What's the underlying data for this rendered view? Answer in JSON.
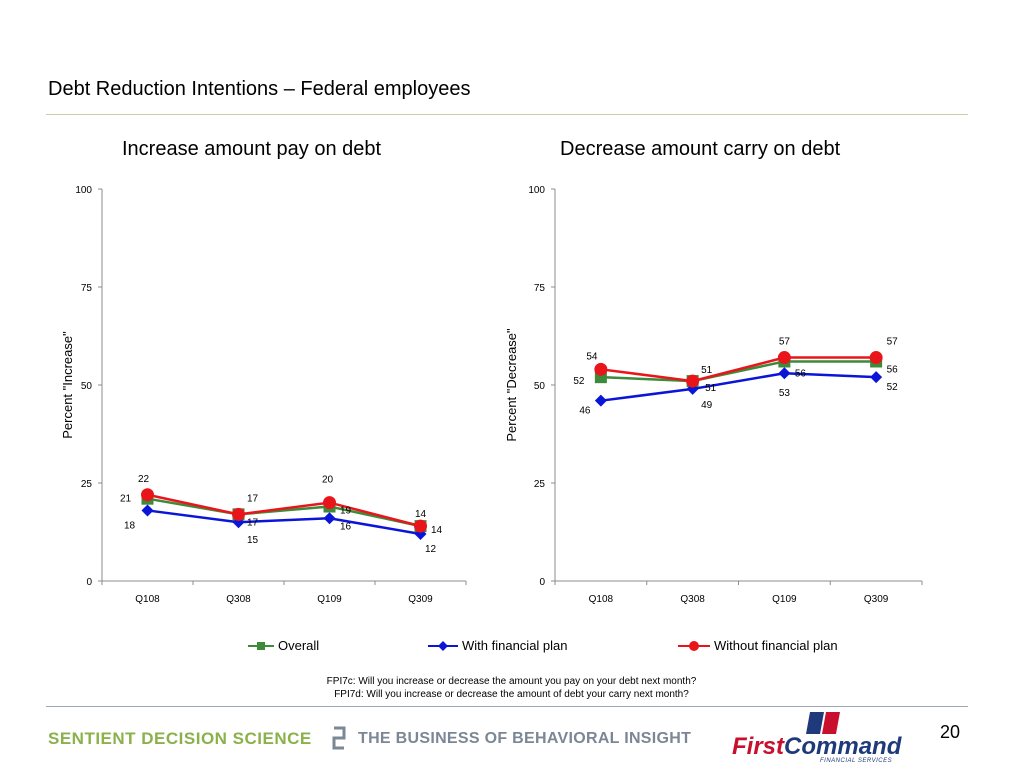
{
  "page": {
    "title": "Debt Reduction Intentions – Federal employees",
    "page_number": "20",
    "questions": [
      "FPI7c: Will you increase or decrease the amount you pay on your debt next month?",
      "FPI7d: Will you increase or decrease the amount of debt your carry next month?"
    ]
  },
  "legend": {
    "items": [
      {
        "label": "Overall",
        "color": "#3c8a3a",
        "marker": "square"
      },
      {
        "label": "With financial plan",
        "color": "#0b15d8",
        "marker": "diamond"
      },
      {
        "label": "Without financial plan",
        "color": "#e8161b",
        "marker": "circle"
      }
    ]
  },
  "footer": {
    "brand_left": "SENTIENT DECISION SCIENCE",
    "brand_tagline": "THE BUSINESS OF BEHAVIORAL INSIGHT",
    "brand_right_a": "First",
    "brand_right_b": "Command",
    "brand_right_sub": "FINANCIAL SERVICES"
  },
  "chart_data": [
    {
      "type": "line",
      "title": "Increase amount pay on debt",
      "ylabel": "Percent \"Increase\"",
      "xlabel": "",
      "ylim": [
        0,
        100
      ],
      "yticks": [
        0,
        25,
        50,
        75,
        100
      ],
      "categories": [
        "Q108",
        "Q308",
        "Q109",
        "Q309"
      ],
      "series": [
        {
          "name": "Overall",
          "values": [
            21,
            17,
            19,
            14
          ],
          "color": "#3c8a3a",
          "marker": "square"
        },
        {
          "name": "With financial plan",
          "values": [
            18,
            15,
            16,
            12
          ],
          "color": "#0b15d8",
          "marker": "diamond"
        },
        {
          "name": "Without financial plan",
          "values": [
            22,
            17,
            20,
            14
          ],
          "color": "#e8161b",
          "marker": "circle"
        }
      ],
      "legend": "bottom"
    },
    {
      "type": "line",
      "title": "Decrease amount carry on debt",
      "ylabel": "Percent \"Decrease\"",
      "xlabel": "",
      "ylim": [
        0,
        100
      ],
      "yticks": [
        0,
        25,
        50,
        75,
        100
      ],
      "categories": [
        "Q108",
        "Q308",
        "Q109",
        "Q309"
      ],
      "series": [
        {
          "name": "Overall",
          "values": [
            52,
            51,
            56,
            56
          ],
          "color": "#3c8a3a",
          "marker": "square"
        },
        {
          "name": "With financial plan",
          "values": [
            46,
            49,
            53,
            52
          ],
          "color": "#0b15d8",
          "marker": "diamond"
        },
        {
          "name": "Without financial plan",
          "values": [
            54,
            51,
            57,
            57
          ],
          "color": "#e8161b",
          "marker": "circle"
        }
      ],
      "legend": "bottom"
    }
  ]
}
